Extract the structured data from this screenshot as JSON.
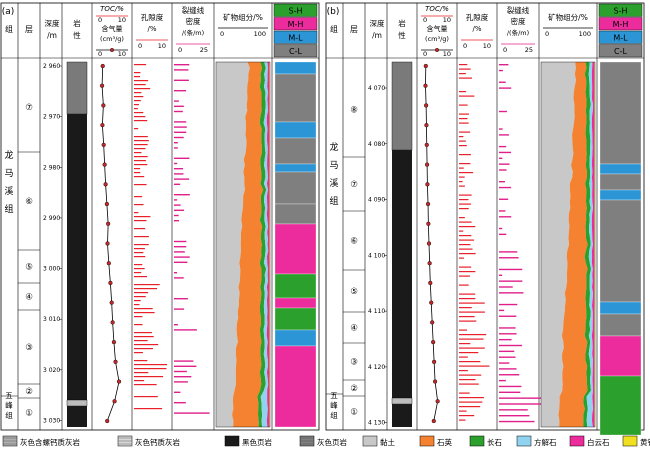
{
  "panels": [
    {
      "tag": "(a)",
      "headers": {
        "group": "组",
        "layer": "层",
        "depth": "深度/m",
        "lith": "岩性",
        "toc": "TOC/%",
        "toc_max": "10",
        "toc_zero": "0",
        "content": "含气量/(cm³/g)",
        "content_zero": "0",
        "content_max": "10",
        "porosity": "孔隙度/%",
        "porosity_zero": "0",
        "porosity_max": "10",
        "frac": "裂缝线密度/(条/m)",
        "frac_zero": "0",
        "frac_max": "25",
        "mineral": "矿物组分/%",
        "mineral_zero": "0",
        "mineral_max": "100"
      },
      "facies_legend": [
        "S-H",
        "M-H",
        "M-L",
        "C-L"
      ],
      "depth_ticks": [
        "2 960",
        "2 970",
        "2 980",
        "2 990",
        "3 000",
        "3 010",
        "3 020",
        "3 030"
      ],
      "formations": [
        "龙马溪组",
        "五峰组"
      ],
      "layers": [
        "⑦",
        "⑥",
        "⑤",
        "④",
        "③",
        "②",
        "①"
      ],
      "toc_values": [
        2.1,
        1.9,
        2.3,
        2.0,
        2.4,
        2.7,
        3.0,
        3.4,
        3.8,
        3.6,
        4.0,
        4.5,
        4.9,
        5.2,
        5.6,
        6.1,
        7.2,
        5.8,
        3.5
      ]
    },
    {
      "tag": "(b)",
      "headers": {
        "group": "组",
        "layer": "层",
        "depth": "深度/m",
        "lith": "岩性",
        "toc": "TOC/%",
        "toc_max": "10",
        "toc_zero": "0",
        "content": "含气量/(cm³/g)",
        "content_zero": "0",
        "content_max": "10",
        "porosity": "孔隙度/%",
        "porosity_zero": "0",
        "porosity_max": "10",
        "frac": "裂缝线密度/(条/m)",
        "frac_zero": "0",
        "frac_max": "25",
        "mineral": "矿物组分/%",
        "mineral_zero": "0",
        "mineral_max": "100"
      },
      "facies_legend": [
        "S-H",
        "M-H",
        "M-L",
        "C-L"
      ],
      "depth_ticks": [
        "4 070",
        "4 080",
        "4 090",
        "4 100",
        "4 110",
        "4 120",
        "4 130"
      ],
      "formations": [
        "龙马溪组",
        "五峰组"
      ],
      "layers": [
        "⑧",
        "⑦",
        "⑥",
        "⑤",
        "④",
        "③",
        "②",
        "①"
      ],
      "toc_values": [
        1.5,
        1.4,
        1.6,
        1.7,
        1.8,
        1.9,
        2.0,
        2.2,
        2.3,
        2.5,
        2.7,
        2.9,
        3.2,
        3.5,
        3.8,
        4.1,
        4.4,
        5.2,
        4.0
      ]
    }
  ],
  "legend": [
    "灰色含螺钙质灰岩",
    "灰色钙质灰岩",
    "黑色页岩",
    "灰色页岩",
    "黏土",
    "石英",
    "长石",
    "方解石",
    "白云石",
    "黄铁矿"
  ],
  "colors": {
    "clay": "#c8c8c8",
    "quartz": "#f58231",
    "feldspar": "#2ca02c",
    "calcite": "#8fd3f0",
    "dolomite": "#ec2b9c",
    "pyrite": "#f0e020",
    "S-H": "#2ca02c",
    "M-H": "#ec2b9c",
    "M-L": "#2b95d6",
    "C-L": "#7f7f7f",
    "red_bar": "#e8202a",
    "pink_bar": "#e0208a",
    "shale": "#1a1a1a"
  }
}
